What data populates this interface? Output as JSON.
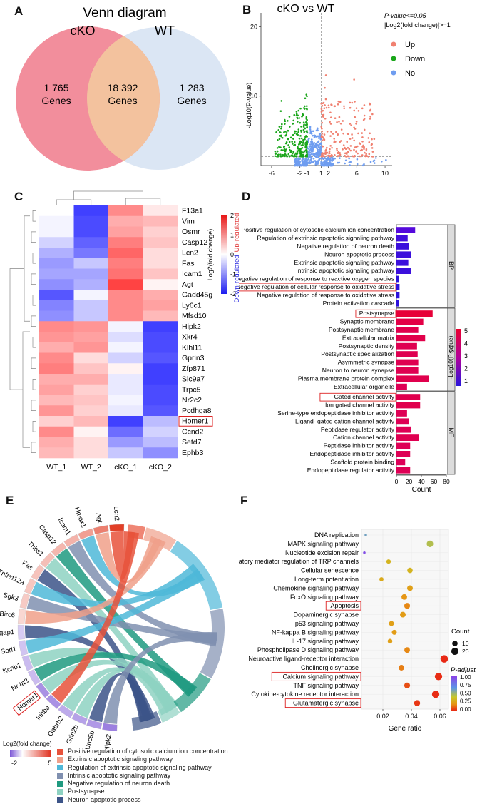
{
  "panel_labels": [
    "A",
    "B",
    "C",
    "D",
    "E",
    "F"
  ],
  "chart_data": [
    {
      "id": "A",
      "type": "venn",
      "title": "Venn diagram",
      "sets": [
        "cKO",
        "WT"
      ],
      "left_only": {
        "count": "1 765",
        "unit": "Genes"
      },
      "overlap": {
        "count": "18 392",
        "unit": "Genes"
      },
      "right_only": {
        "count": "1 283",
        "unit": "Genes"
      },
      "colors": {
        "left": "#f28e9c",
        "overlap": "#f3c29e",
        "right": "#dbe6f4"
      }
    },
    {
      "id": "B",
      "type": "scatter",
      "title": "cKO vs WT",
      "criteria": [
        "P-value<=0.05",
        "|Log2(fold change)|>=1"
      ],
      "ylabel": "-Log10(P-value)",
      "xticks": [
        -6,
        -2,
        -1,
        1,
        2,
        6,
        10
      ],
      "yticks": [
        10,
        20
      ],
      "xlim": [
        -7.5,
        11
      ],
      "ylim": [
        0,
        22
      ],
      "legend": [
        {
          "name": "Up",
          "color": "#f08070"
        },
        {
          "name": "Down",
          "color": "#1aa61a"
        },
        {
          "name": "No",
          "color": "#6f9df0"
        }
      ],
      "counts": {
        "Up": 1283,
        "Down": 1765,
        "No": 18392
      }
    },
    {
      "id": "C",
      "type": "heatmap",
      "columns": [
        "WT_1",
        "WT_2",
        "cKO_1",
        "cKO_2"
      ],
      "rows": [
        "F13a1",
        "Vim",
        "Osmr",
        "Casp12",
        "Lcn2",
        "Fas",
        "Icam1",
        "Agt",
        "Gadd45g",
        "Ly6c1",
        "Mfsd10",
        "Hipk2",
        "Xkr4",
        "Klhl11",
        "Gprin3",
        "Zfp871",
        "Slc9a7",
        "Trpc5",
        "Nr2c2",
        "Pcdhga8",
        "Homer1",
        "Ccnd2",
        "Setd7",
        "Ephb3"
      ],
      "highlight": "Homer1",
      "values": [
        [
          0.0,
          -1.7,
          1.0,
          0.2
        ],
        [
          -0.1,
          -1.6,
          0.7,
          0.6
        ],
        [
          -0.1,
          -1.6,
          0.8,
          0.4
        ],
        [
          -0.4,
          -1.4,
          1.1,
          0.5
        ],
        [
          -0.7,
          -1.2,
          1.3,
          0.3
        ],
        [
          -0.9,
          -0.5,
          1.1,
          0.3
        ],
        [
          -0.8,
          -0.8,
          1.2,
          0.5
        ],
        [
          -1.0,
          -0.7,
          1.6,
          0.1
        ],
        [
          -1.5,
          -0.1,
          1.0,
          0.7
        ],
        [
          -1.1,
          -0.5,
          1.0,
          0.8
        ],
        [
          -1.0,
          -0.5,
          1.0,
          0.6
        ],
        [
          1.0,
          0.9,
          -0.1,
          -1.7
        ],
        [
          0.9,
          0.8,
          -0.3,
          -1.6
        ],
        [
          0.7,
          0.9,
          -0.1,
          -1.6
        ],
        [
          1.0,
          0.3,
          -0.4,
          -1.5
        ],
        [
          1.1,
          0.5,
          0.1,
          -1.7
        ],
        [
          0.7,
          0.7,
          -0.2,
          -1.7
        ],
        [
          0.8,
          0.4,
          -0.2,
          -1.6
        ],
        [
          0.6,
          0.5,
          -0.1,
          -1.6
        ],
        [
          0.9,
          0.4,
          -0.2,
          -1.5
        ],
        [
          0.4,
          0.6,
          -1.7,
          -0.6
        ],
        [
          1.0,
          0.1,
          -1.3,
          -0.4
        ],
        [
          0.7,
          0.3,
          -0.9,
          -0.6
        ],
        [
          0.6,
          0.3,
          -0.5,
          -1.0
        ]
      ],
      "legend_title": "Log2(fold change)",
      "legend_ticks": [
        2,
        1,
        0,
        -1,
        -2
      ],
      "legend_up": "Up-regulated",
      "legend_down": "Down-regulated"
    },
    {
      "id": "D",
      "type": "bar",
      "orientation": "horizontal",
      "xlabel": "Count",
      "xticks": [
        0,
        20,
        40,
        60,
        80
      ],
      "xlim": [
        0,
        80
      ],
      "color_title": "-Log10(P-value)",
      "color_ticks": [
        5,
        4,
        3,
        2,
        1
      ],
      "groups": [
        {
          "name": "BP",
          "terms": [
            {
              "label": "Positive regulation of cytosolic calcium ion concentration",
              "count": 30,
              "logp": 1.2
            },
            {
              "label": "Regulation of extrinsic apoptotic signaling pathway",
              "count": 18,
              "logp": 0.9
            },
            {
              "label": "Negative regulation of neuron death",
              "count": 20,
              "logp": 0.8
            },
            {
              "label": "Neuron apoptotic process",
              "count": 24,
              "logp": 0.8
            },
            {
              "label": "Extrinsic apoptotic signaling pathway",
              "count": 19,
              "logp": 0.8
            },
            {
              "label": "Intrinsic apoptotic signaling pathway",
              "count": 24,
              "logp": 0.8
            },
            {
              "label": "Negative regulation of response to reactive oxygen species",
              "count": 4,
              "logp": 0.6
            },
            {
              "label": "Negative regulation of cellular response to oxidative stress",
              "count": 5,
              "logp": 0.6
            },
            {
              "label": "Negative regulation of response to oxidative stress",
              "count": 5,
              "logp": 0.6
            },
            {
              "label": "Protein activation cascade",
              "count": 4,
              "logp": 0.6
            }
          ]
        },
        {
          "name": "CC",
          "terms": [
            {
              "label": "Postsynapse",
              "count": 58,
              "logp": 5.2
            },
            {
              "label": "Synaptic membrane",
              "count": 43,
              "logp": 4.8
            },
            {
              "label": "Postsynaptic membrane",
              "count": 35,
              "logp": 4.6
            },
            {
              "label": "Extracellular matrix",
              "count": 46,
              "logp": 4.7
            },
            {
              "label": "Postsynaptic density",
              "count": 33,
              "logp": 4.5
            },
            {
              "label": "Postsynaptic specialization",
              "count": 34,
              "logp": 4.5
            },
            {
              "label": "Asymmetric synapse",
              "count": 35,
              "logp": 4.5
            },
            {
              "label": "Neuron to neuron synapse",
              "count": 35,
              "logp": 4.5
            },
            {
              "label": "Plasma membrane protein complex",
              "count": 52,
              "logp": 4.6
            },
            {
              "label": "Extracellular organelle",
              "count": 17,
              "logp": 4.4
            }
          ]
        },
        {
          "name": "MF",
          "terms": [
            {
              "label": "Gated channel activity",
              "count": 38,
              "logp": 4.6
            },
            {
              "label": "Ion gated channel activity",
              "count": 38,
              "logp": 4.6
            },
            {
              "label": "Serine-type endopeptidase inhibitor activity",
              "count": 17,
              "logp": 4.4
            },
            {
              "label": "Ligand- gated cation channel activity",
              "count": 20,
              "logp": 4.4
            },
            {
              "label": "Peptidase regulator activity",
              "count": 24,
              "logp": 4.4
            },
            {
              "label": "Cation channel activity",
              "count": 36,
              "logp": 4.5
            },
            {
              "label": "Peptidase inhibitor activity",
              "count": 22,
              "logp": 4.4
            },
            {
              "label": "Endopeptidase inhibitor activity",
              "count": 22,
              "logp": 4.4
            },
            {
              "label": "Scaffold protein binding",
              "count": 14,
              "logp": 4.3
            },
            {
              "label": "Endopeptidase regulator activity",
              "count": 22,
              "logp": 4.4
            }
          ]
        }
      ],
      "highlights": [
        "Negative regulation of cellular response to oxidative stress",
        "Postsynapse",
        "Gated channel activity"
      ]
    },
    {
      "id": "E",
      "type": "chord",
      "genes": [
        "Lcn2",
        "Agt",
        "Hmox1",
        "Icam1",
        "Casp12",
        "Thbs1",
        "Fas",
        "Tnfrsf12a",
        "Sgk3",
        "Birc6",
        "Syngap1",
        "Sorl1",
        "Kcnb1",
        "Nr4a3",
        "Homer1",
        "Inhba",
        "Gabrb2",
        "Grin2b",
        "Unc5b",
        "Hipk2"
      ],
      "gene_logfc": [
        4.8,
        3.2,
        2.4,
        1.9,
        1.8,
        1.6,
        1.5,
        1.4,
        1.3,
        1.0,
        -0.6,
        -0.7,
        -0.8,
        -0.8,
        -1.3,
        -1.3,
        -1.0,
        -1.1,
        -1.2,
        -1.5
      ],
      "highlight": "Homer1",
      "legend_title": "Log2(fold change)",
      "legend_ticks": [
        "-2",
        "5"
      ],
      "terms": [
        {
          "label": "Positive regulation of cytosolic calcium ion concentration",
          "color": "#e8523b"
        },
        {
          "label": "Extrinsic apoptotic signaling pathway",
          "color": "#f0a08a"
        },
        {
          "label": "Regulation of extrinsic apoptotic signaling pathway",
          "color": "#4fb8d8"
        },
        {
          "label": "Intrinsic apoptotic signaling pathway",
          "color": "#8090b0"
        },
        {
          "label": "Negative regulation of neuron death",
          "color": "#1f9a80"
        },
        {
          "label": "Postsynapse",
          "color": "#8ed2c2"
        },
        {
          "label": "Neuron apoptotic process",
          "color": "#3c5488"
        }
      ]
    },
    {
      "id": "F",
      "type": "scatter",
      "xlabel": "Gene ratio",
      "xticks": [
        0.02,
        0.04,
        0.06
      ],
      "xlim": [
        0.005,
        0.066
      ],
      "size_title": "Count",
      "size_ticks": [
        10,
        20
      ],
      "color_title": "P-adjust",
      "color_ticks": [
        "1.00",
        "0.75",
        "0.50",
        "0.25",
        "0.00"
      ],
      "pathways": [
        {
          "label": "DNA replication",
          "ratio": 0.008,
          "count": 1,
          "padj": 0.7
        },
        {
          "label": "MAPK signaling pathway",
          "ratio": 0.053,
          "count": 16,
          "padj": 0.55
        },
        {
          "label": "Nucleotide excision repair",
          "ratio": 0.007,
          "count": 1,
          "padj": 0.95
        },
        {
          "label": "Inflammatory mediator regulation of TRP channels",
          "ratio": 0.024,
          "count": 6,
          "padj": 0.4
        },
        {
          "label": "Cellular senescence",
          "ratio": 0.039,
          "count": 10,
          "padj": 0.4
        },
        {
          "label": "Long-term potentiation",
          "ratio": 0.019,
          "count": 5,
          "padj": 0.35
        },
        {
          "label": "Chemokine signaling pathway",
          "ratio": 0.039,
          "count": 11,
          "padj": 0.3
        },
        {
          "label": "FoxO signaling pathway",
          "ratio": 0.035,
          "count": 11,
          "padj": 0.25
        },
        {
          "label": "Apoptosis",
          "ratio": 0.037,
          "count": 12,
          "padj": 0.22
        },
        {
          "label": "Dopaminergic synapse",
          "ratio": 0.034,
          "count": 11,
          "padj": 0.28
        },
        {
          "label": "p53 signaling pathway",
          "ratio": 0.026,
          "count": 8,
          "padj": 0.3
        },
        {
          "label": "NF-kappa B signaling pathway",
          "ratio": 0.028,
          "count": 8,
          "padj": 0.28
        },
        {
          "label": "IL-17 signaling pathway",
          "ratio": 0.025,
          "count": 7,
          "padj": 0.3
        },
        {
          "label": "Phospholipase D signaling pathway",
          "ratio": 0.037,
          "count": 11,
          "padj": 0.22
        },
        {
          "label": "Neuroactive ligand-receptor interaction",
          "ratio": 0.063,
          "count": 22,
          "padj": 0.02
        },
        {
          "label": "Cholinergic synapse",
          "ratio": 0.033,
          "count": 11,
          "padj": 0.2
        },
        {
          "label": "Calcium signaling pathway",
          "ratio": 0.059,
          "count": 21,
          "padj": 0.03
        },
        {
          "label": "TNF signaling pathway",
          "ratio": 0.037,
          "count": 12,
          "padj": 0.1
        },
        {
          "label": "Cytokine-cytokine receptor interaction",
          "ratio": 0.057,
          "count": 21,
          "padj": 0.03
        },
        {
          "label": "Glutamatergic synapse",
          "ratio": 0.044,
          "count": 13,
          "padj": 0.05
        }
      ],
      "highlights": [
        "Apoptosis",
        "Calcium signaling pathway",
        "Glutamatergic synapse"
      ]
    }
  ]
}
